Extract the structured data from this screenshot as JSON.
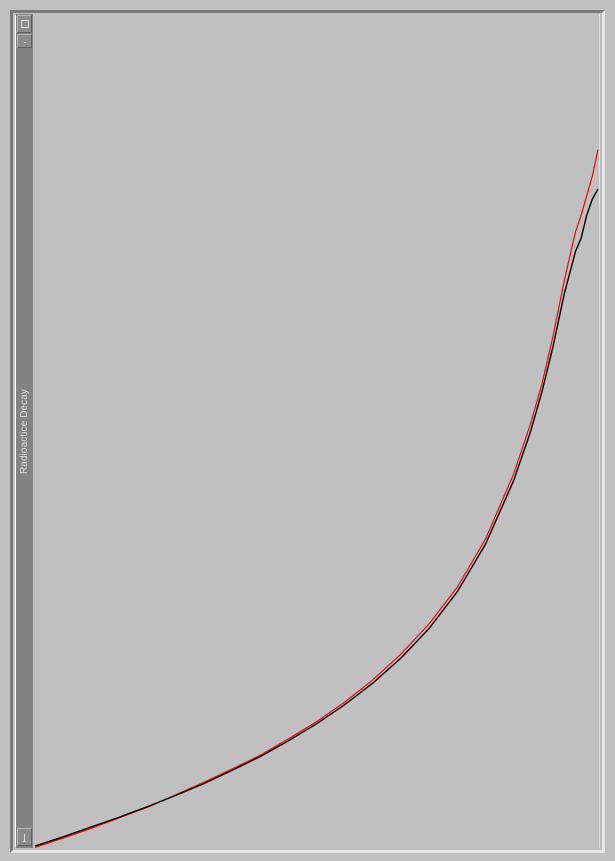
{
  "window": {
    "title": "Radioactice Decay"
  },
  "titlebar_buttons": [
    {
      "icon": "square-icon"
    },
    {
      "icon": "dot-icon"
    },
    {
      "icon": "bar-icon"
    }
  ],
  "colors": {
    "background": "#c0c0c0",
    "sidebar": "#838383",
    "series_model": "#000000",
    "series_measured": "#ff0000"
  },
  "chart_data": {
    "type": "line",
    "title": "",
    "xlabel": "",
    "ylabel": "",
    "grid": false,
    "legend": "none",
    "xlim": [
      0,
      1
    ],
    "ylim": [
      0,
      1
    ],
    "series": [
      {
        "name": "",
        "color": "#000000",
        "x": [
          0.0,
          0.05,
          0.1,
          0.15,
          0.2,
          0.25,
          0.3,
          0.35,
          0.4,
          0.45,
          0.5,
          0.55,
          0.6,
          0.65,
          0.7,
          0.75,
          0.8,
          0.85,
          0.88,
          0.9,
          0.92,
          0.94,
          0.96,
          0.97,
          0.98,
          0.99,
          1.0
        ],
        "values": [
          0.0,
          0.014,
          0.029,
          0.044,
          0.06,
          0.077,
          0.095,
          0.115,
          0.136,
          0.16,
          0.186,
          0.215,
          0.248,
          0.286,
          0.331,
          0.387,
          0.459,
          0.556,
          0.63,
          0.69,
          0.76,
          0.84,
          0.905,
          0.925,
          0.96,
          0.985,
          1.0
        ]
      },
      {
        "name": "",
        "color": "#ff0000",
        "x": [
          0.0,
          0.05,
          0.1,
          0.15,
          0.2,
          0.25,
          0.3,
          0.35,
          0.4,
          0.45,
          0.5,
          0.55,
          0.6,
          0.65,
          0.7,
          0.75,
          0.8,
          0.85,
          0.88,
          0.9,
          0.92,
          0.94,
          0.96,
          0.97,
          0.98,
          0.99,
          1.0
        ],
        "values": [
          -0.002,
          0.012,
          0.027,
          0.043,
          0.059,
          0.078,
          0.097,
          0.117,
          0.138,
          0.163,
          0.189,
          0.219,
          0.253,
          0.292,
          0.338,
          0.394,
          0.467,
          0.566,
          0.642,
          0.702,
          0.776,
          0.86,
          0.935,
          0.96,
          0.99,
          1.02,
          1.06
        ]
      }
    ]
  }
}
